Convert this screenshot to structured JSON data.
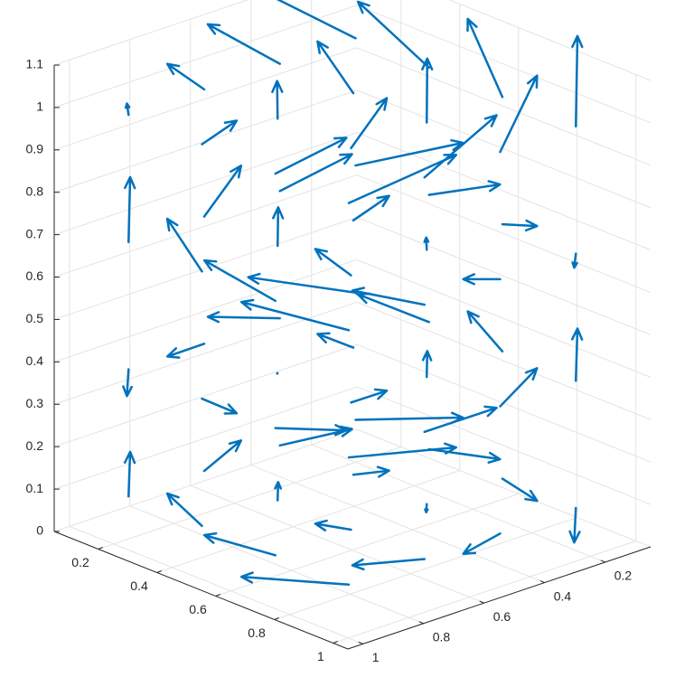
{
  "chart_data": {
    "type": "quiver3",
    "color": "#0072bd",
    "grid": true,
    "x": [
      0.2,
      0.45,
      0.7,
      0.95
    ],
    "y": [
      0.2,
      0.45,
      0.7,
      0.95
    ],
    "z": [
      0.1,
      0.4,
      0.7,
      1.0
    ],
    "u": [
      [
        [
          0.3,
          0.3,
          0.3,
          0.3
        ],
        [
          0.1,
          0.1,
          0.1,
          0.1
        ],
        [
          -0.1,
          -0.1,
          -0.1,
          -0.1
        ],
        [
          -0.3,
          -0.3,
          -0.3,
          -0.3
        ]
      ],
      [
        [
          -0.3,
          -0.3,
          -0.3,
          -0.3
        ],
        [
          -0.1,
          -0.1,
          -0.1,
          -0.1
        ],
        [
          0.1,
          0.1,
          0.1,
          0.1
        ],
        [
          0.3,
          0.3,
          0.3,
          0.3
        ]
      ],
      [
        [
          0.3,
          0.3,
          0.3,
          0.3
        ],
        [
          0.1,
          0.1,
          0.1,
          0.1
        ],
        [
          -0.1,
          -0.1,
          -0.1,
          -0.1
        ],
        [
          -0.3,
          -0.3,
          -0.3,
          -0.3
        ]
      ],
      [
        [
          -0.3,
          -0.3,
          -0.3,
          -0.3
        ],
        [
          -0.1,
          -0.1,
          -0.1,
          -0.1
        ],
        [
          0.1,
          0.1,
          0.1,
          0.1
        ],
        [
          0.3,
          0.3,
          0.3,
          0.3
        ]
      ]
    ],
    "v": [
      [
        [
          -0.3,
          -0.1,
          0.1,
          0.3
        ],
        [
          -0.3,
          -0.1,
          0.1,
          0.3
        ],
        [
          -0.3,
          -0.1,
          0.1,
          0.3
        ],
        [
          -0.3,
          -0.1,
          0.1,
          0.3
        ]
      ],
      [
        [
          0.3,
          0.1,
          -0.1,
          -0.3
        ],
        [
          0.3,
          0.1,
          -0.1,
          -0.3
        ],
        [
          0.3,
          0.1,
          -0.1,
          -0.3
        ],
        [
          0.3,
          0.1,
          -0.1,
          -0.3
        ]
      ],
      [
        [
          -0.3,
          -0.1,
          0.1,
          0.3
        ],
        [
          -0.3,
          -0.1,
          0.1,
          0.3
        ],
        [
          -0.3,
          -0.1,
          0.1,
          0.3
        ],
        [
          -0.3,
          -0.1,
          0.1,
          0.3
        ]
      ],
      [
        [
          0.3,
          0.1,
          -0.1,
          -0.3
        ],
        [
          0.3,
          0.1,
          -0.1,
          -0.3
        ],
        [
          0.3,
          0.1,
          -0.1,
          -0.3
        ],
        [
          0.3,
          0.1,
          -0.1,
          -0.3
        ]
      ]
    ],
    "w": [
      [
        [
          0.02,
          0.02,
          0.02,
          0.02
        ],
        [
          0.02,
          0.02,
          0.02,
          0.02
        ],
        [
          0.02,
          0.02,
          0.02,
          0.02
        ],
        [
          0.02,
          0.02,
          0.02,
          0.02
        ]
      ],
      [
        [
          0.05,
          0.05,
          0.05,
          0.05
        ],
        [
          0.05,
          0.05,
          0.05,
          0.05
        ],
        [
          0.05,
          0.05,
          0.05,
          0.05
        ],
        [
          0.05,
          0.05,
          0.05,
          0.05
        ]
      ],
      [
        [
          0.1,
          0.1,
          0.1,
          0.1
        ],
        [
          0.1,
          0.1,
          0.1,
          0.1
        ],
        [
          0.1,
          0.1,
          0.1,
          0.1
        ],
        [
          0.1,
          0.1,
          0.1,
          0.1
        ]
      ],
      [
        [
          0.2,
          0.2,
          0.2,
          0.2
        ],
        [
          0.2,
          0.2,
          0.2,
          0.2
        ],
        [
          0.2,
          0.2,
          0.2,
          0.2
        ],
        [
          0.2,
          0.2,
          0.2,
          0.2
        ]
      ]
    ],
    "xlim": [
      0.05,
      1.05
    ],
    "ylim": [
      0.05,
      1.05
    ],
    "zlim": [
      0,
      1.1
    ],
    "xticks": [
      0.2,
      0.4,
      0.6,
      0.8,
      1
    ],
    "yticks": [
      0.2,
      0.4,
      0.6,
      0.8,
      1
    ],
    "zticks": [
      0,
      0.1,
      0.2,
      0.3,
      0.4,
      0.5,
      0.6,
      0.7,
      0.8,
      0.9,
      1,
      1.1
    ]
  }
}
